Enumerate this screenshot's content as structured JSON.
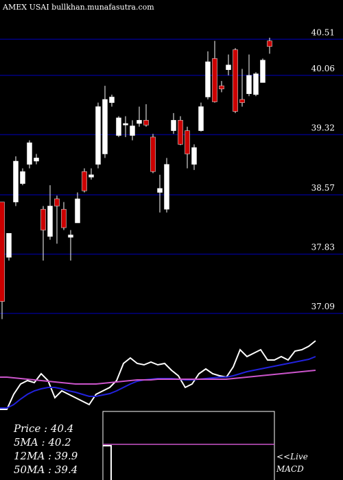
{
  "chart_data": [
    {
      "type": "candlestick",
      "title": "AMEX  USAI bullkhan.munafasutra.com",
      "up_color": "#ffffff",
      "down_color": "#cc0000",
      "grid_color": "#000080",
      "grid": true,
      "ylim": [
        36.98,
        41.0
      ],
      "yticks": [
        {
          "value": 40.51,
          "label": "40.51"
        },
        {
          "value": 40.06,
          "label": "40.06"
        },
        {
          "value": 39.32,
          "label": "39.32"
        },
        {
          "value": 38.57,
          "label": "38.57"
        },
        {
          "value": 37.83,
          "label": "37.83"
        },
        {
          "value": 37.09,
          "label": "37.09"
        }
      ],
      "open": [
        38.48,
        37.79,
        38.48,
        38.71,
        38.95,
        38.99,
        38.39,
        38.05,
        38.52,
        38.39,
        38.04,
        38.22,
        38.86,
        38.79,
        38.95,
        39.08,
        39.72,
        39.31,
        39.44,
        39.31,
        39.46,
        39.5,
        39.29,
        38.6,
        38.39,
        39.37,
        39.5,
        39.37,
        38.95,
        39.37,
        39.79,
        40.27,
        39.93,
        40.13,
        40.38,
        39.76,
        39.83,
        39.82,
        39.97,
        40.49
      ],
      "high": [
        38.48,
        38.09,
        39.05,
        38.9,
        39.25,
        39.08,
        38.43,
        38.69,
        38.56,
        38.48,
        38.13,
        38.6,
        38.9,
        38.9,
        39.72,
        39.93,
        39.82,
        39.55,
        39.55,
        39.5,
        39.67,
        39.7,
        39.33,
        38.82,
        39.03,
        39.59,
        39.55,
        39.42,
        39.2,
        39.72,
        40.36,
        40.49,
        39.99,
        40.32,
        40.4,
        40.14,
        40.32,
        40.1,
        40.27,
        40.53
      ],
      "low": [
        37.02,
        37.75,
        38.43,
        38.69,
        38.9,
        38.95,
        37.75,
        38.01,
        37.96,
        38.13,
        37.75,
        38.22,
        38.6,
        38.76,
        38.9,
        39.03,
        39.67,
        39.29,
        39.29,
        39.25,
        39.42,
        39.42,
        38.84,
        38.35,
        38.35,
        39.33,
        39.19,
        38.9,
        38.88,
        39.36,
        39.76,
        39.72,
        39.85,
        40.06,
        39.59,
        39.67,
        39.8,
        39.8,
        39.97,
        40.33
      ],
      "close": [
        37.24,
        38.09,
        38.99,
        38.86,
        39.22,
        39.03,
        38.13,
        38.43,
        38.43,
        38.16,
        38.07,
        38.52,
        38.62,
        38.82,
        39.67,
        39.76,
        39.79,
        39.53,
        39.46,
        39.43,
        39.5,
        39.44,
        38.86,
        38.65,
        38.95,
        39.5,
        39.2,
        39.08,
        39.16,
        39.67,
        40.23,
        39.73,
        39.89,
        40.19,
        39.61,
        39.72,
        40.06,
        40.08,
        40.25,
        40.42
      ]
    },
    {
      "type": "line",
      "ylim": [
        0,
        130
      ],
      "series": [
        {
          "color": "#ffffff",
          "values": [
            3,
            3,
            25,
            40,
            45,
            42,
            55,
            45,
            20,
            30,
            25,
            20,
            15,
            10,
            25,
            30,
            35,
            45,
            70,
            78,
            70,
            68,
            72,
            68,
            70,
            60,
            52,
            35,
            40,
            55,
            62,
            55,
            52,
            50,
            65,
            90,
            80,
            85,
            90,
            75,
            75,
            80,
            75,
            88,
            90,
            95,
            103
          ]
        },
        {
          "color": "#2222dd",
          "values": [
            5,
            5,
            10,
            18,
            25,
            30,
            33,
            35,
            35,
            33,
            30,
            28,
            25,
            22,
            22,
            24,
            26,
            30,
            35,
            40,
            44,
            46,
            47,
            48,
            48,
            48,
            47,
            46,
            46,
            47,
            48,
            49,
            50,
            50,
            52,
            55,
            58,
            60,
            62,
            64,
            66,
            68,
            70,
            72,
            74,
            76,
            80
          ]
        },
        {
          "color": "#cc55cc",
          "values": [
            50,
            50,
            49,
            48,
            47,
            46,
            45,
            44,
            43,
            42,
            41,
            40,
            40,
            40,
            40,
            41,
            42,
            43,
            44,
            45,
            46,
            46,
            46,
            47,
            47,
            47,
            47,
            47,
            47,
            47,
            47,
            47,
            47,
            47,
            48,
            49,
            50,
            51,
            52,
            53,
            54,
            55,
            56,
            57,
            58,
            59,
            60
          ]
        }
      ],
      "info": [
        "Price   : 40.4",
        "5MA  : 40.2",
        "12MA : 39.9",
        "50MA : 39.4"
      ],
      "note": [
        "<<Live",
        "MACD"
      ]
    }
  ]
}
